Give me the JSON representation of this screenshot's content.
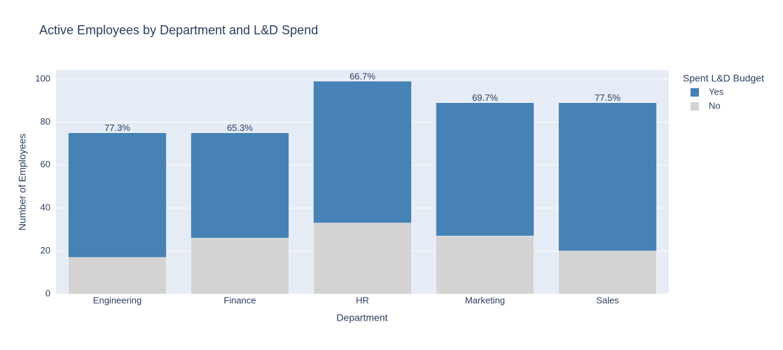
{
  "chart_data": {
    "type": "stacked_bar",
    "title": "Active Employees by Department and L&D Spend",
    "x_label": "Department",
    "y_label": "Number of Employees",
    "legend_title": "Spent L&D Budget",
    "categories": [
      "Engineering",
      "Finance",
      "HR",
      "Marketing",
      "Sales"
    ],
    "series": [
      {
        "name": "Yes",
        "color": "#4682b4",
        "values": [
          58,
          49,
          66,
          62,
          69
        ]
      },
      {
        "name": "No",
        "color": "#d3d3d3",
        "values": [
          17,
          26,
          33,
          27,
          20
        ]
      }
    ],
    "annotations": [
      "77.3%",
      "65.3%",
      "66.7%",
      "69.7%",
      "77.5%"
    ],
    "ylim": [
      0,
      104.2
    ],
    "yticks": [
      0,
      20,
      40,
      60,
      80,
      100
    ],
    "grid": true,
    "legend": "right"
  }
}
